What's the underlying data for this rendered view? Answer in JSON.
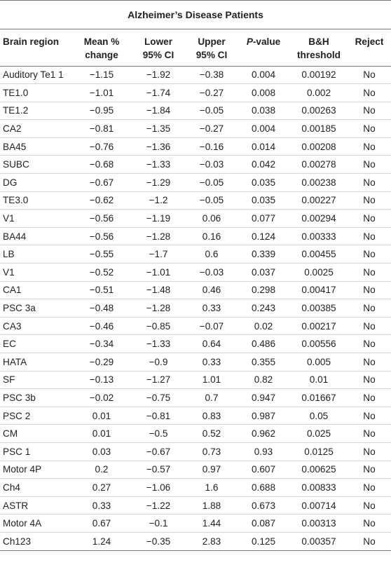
{
  "title": "Alzheimer’s Disease Patients",
  "headers": {
    "region": "Brain region",
    "mean_l1": "Mean %",
    "mean_l2": "change",
    "lower_l1": "Lower",
    "lower_l2": "95% CI",
    "upper_l1": "Upper",
    "upper_l2": "95% CI",
    "p_italic": "P",
    "p_rest": "-value",
    "bh_l1": "B&H",
    "bh_l2": "threshold",
    "reject": "Reject"
  },
  "rows": [
    [
      "Auditory Te1 1",
      "−1.15",
      "−1.92",
      "−0.38",
      "0.004",
      "0.00192",
      "No"
    ],
    [
      "TE1.0",
      "−1.01",
      "−1.74",
      "−0.27",
      "0.008",
      "0.002",
      "No"
    ],
    [
      "TE1.2",
      "−0.95",
      "−1.84",
      "−0.05",
      "0.038",
      "0.00263",
      "No"
    ],
    [
      "CA2",
      "−0.81",
      "−1.35",
      "−0.27",
      "0.004",
      "0.00185",
      "No"
    ],
    [
      "BA45",
      "−0.76",
      "−1.36",
      "−0.16",
      "0.014",
      "0.00208",
      "No"
    ],
    [
      "SUBC",
      "−0.68",
      "−1.33",
      "−0.03",
      "0.042",
      "0.00278",
      "No"
    ],
    [
      "DG",
      "−0.67",
      "−1.29",
      "−0.05",
      "0.035",
      "0.00238",
      "No"
    ],
    [
      "TE3.0",
      "−0.62",
      "−1.2",
      "−0.05",
      "0.035",
      "0.00227",
      "No"
    ],
    [
      "V1",
      "−0.56",
      "−1.19",
      "0.06",
      "0.077",
      "0.00294",
      "No"
    ],
    [
      "BA44",
      "−0.56",
      "−1.28",
      "0.16",
      "0.124",
      "0.00333",
      "No"
    ],
    [
      "LB",
      "−0.55",
      "−1.7",
      "0.6",
      "0.339",
      "0.00455",
      "No"
    ],
    [
      "V1",
      "−0.52",
      "−1.01",
      "−0.03",
      "0.037",
      "0.0025",
      "No"
    ],
    [
      "CA1",
      "−0.51",
      "−1.48",
      "0.46",
      "0.298",
      "0.00417",
      "No"
    ],
    [
      "PSC 3a",
      "−0.48",
      "−1.28",
      "0.33",
      "0.243",
      "0.00385",
      "No"
    ],
    [
      "CA3",
      "−0.46",
      "−0.85",
      "−0.07",
      "0.02",
      "0.00217",
      "No"
    ],
    [
      "EC",
      "−0.34",
      "−1.33",
      "0.64",
      "0.486",
      "0.00556",
      "No"
    ],
    [
      "HATA",
      "−0.29",
      "−0.9",
      "0.33",
      "0.355",
      "0.005",
      "No"
    ],
    [
      "SF",
      "−0.13",
      "−1.27",
      "1.01",
      "0.82",
      "0.01",
      "No"
    ],
    [
      "PSC 3b",
      "−0.02",
      "−0.75",
      "0.7",
      "0.947",
      "0.01667",
      "No"
    ],
    [
      "PSC 2",
      "0.01",
      "−0.81",
      "0.83",
      "0.987",
      "0.05",
      "No"
    ],
    [
      "CM",
      "0.01",
      "−0.5",
      "0.52",
      "0.962",
      "0.025",
      "No"
    ],
    [
      "PSC 1",
      "0.03",
      "−0.67",
      "0.73",
      "0.93",
      "0.0125",
      "No"
    ],
    [
      "Motor 4P",
      "0.2",
      "−0.57",
      "0.97",
      "0.607",
      "0.00625",
      "No"
    ],
    [
      "Ch4",
      "0.27",
      "−1.06",
      "1.6",
      "0.688",
      "0.00833",
      "No"
    ],
    [
      "ASTR",
      "0.33",
      "−1.22",
      "1.88",
      "0.673",
      "0.00714",
      "No"
    ],
    [
      "Motor 4A",
      "0.67",
      "−0.1",
      "1.44",
      "0.087",
      "0.00313",
      "No"
    ],
    [
      "Ch123",
      "1.24",
      "−0.35",
      "2.83",
      "0.125",
      "0.00357",
      "No"
    ]
  ]
}
